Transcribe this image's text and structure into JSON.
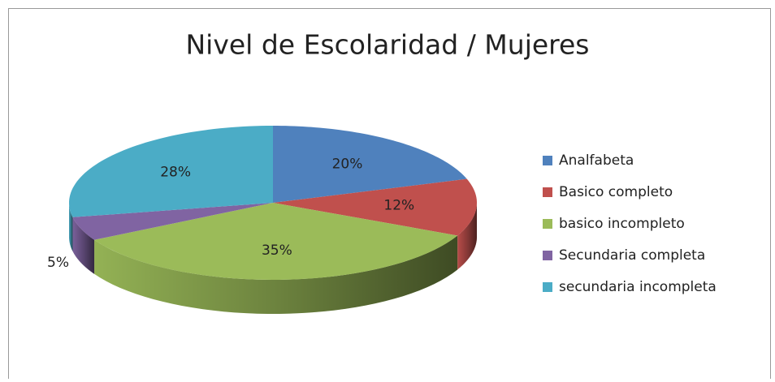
{
  "chart_data": {
    "type": "pie",
    "title": "Nivel de Escolaridad / Mujeres",
    "categories": [
      "Analfabeta",
      "Basico completo",
      "basico incompleto",
      "Secundaria completa",
      "secundaria incompleta"
    ],
    "values": [
      20,
      12,
      35,
      5,
      28
    ],
    "value_labels": [
      "20%",
      "12%",
      "35%",
      "5%",
      "28%"
    ],
    "colors": [
      "#4f81bd",
      "#c0504d",
      "#9bbb59",
      "#8064a2",
      "#4bacc6"
    ],
    "legend": "right"
  }
}
